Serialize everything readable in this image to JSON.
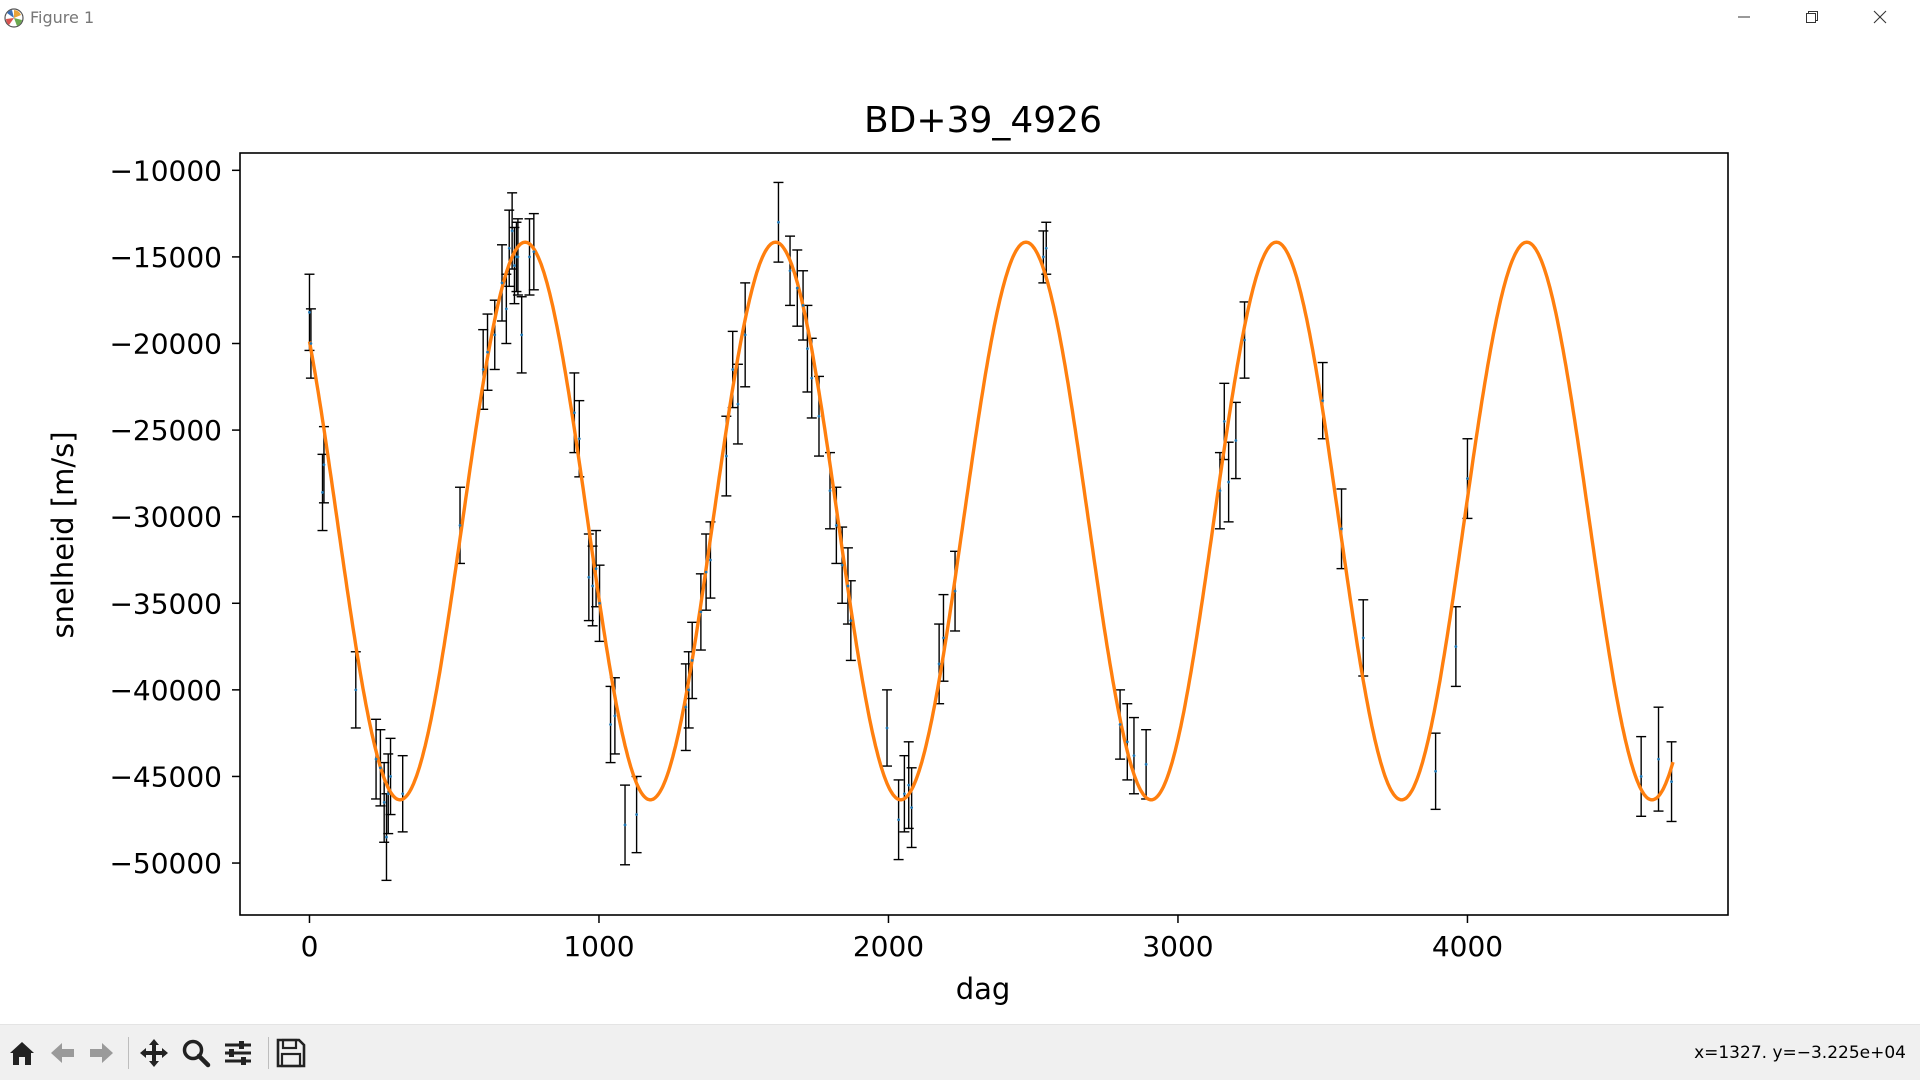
{
  "window": {
    "title": "Figure 1",
    "icons": [
      "matplotlib-icon",
      "minimize-icon",
      "restore-icon",
      "close-icon"
    ]
  },
  "toolbar": {
    "buttons": [
      {
        "name": "home-button",
        "icon": "home-icon",
        "label": "Home"
      },
      {
        "name": "back-button",
        "icon": "arrow-left-icon",
        "label": "Back"
      },
      {
        "name": "forward-button",
        "icon": "arrow-right-icon",
        "label": "Forward"
      },
      {
        "name": "pan-button",
        "icon": "move-icon",
        "label": "Pan"
      },
      {
        "name": "zoom-button",
        "icon": "magnifier-icon",
        "label": "Zoom"
      },
      {
        "name": "configure-subplots-button",
        "icon": "sliders-icon",
        "label": "Subplots"
      },
      {
        "name": "save-button",
        "icon": "floppy-disk-icon",
        "label": "Save"
      }
    ],
    "coords": "x=1327.  y=−3.225e+04"
  },
  "colors": {
    "model": "#ff7f0e",
    "errorbar": "#000000",
    "point": "#1f77b4"
  },
  "chart_data": {
    "type": "scatter",
    "title": "BD+39_4926",
    "xlabel": "dag",
    "ylabel": "snelheid [m/s]",
    "xlim": [
      -240,
      4900
    ],
    "ylim": [
      -53000,
      -9000
    ],
    "xticks": [
      0,
      1000,
      2000,
      3000,
      4000
    ],
    "xtick_labels": [
      "0",
      "1000",
      "2000",
      "3000",
      "4000"
    ],
    "yticks": [
      -10000,
      -15000,
      -20000,
      -25000,
      -30000,
      -35000,
      -40000,
      -45000,
      -50000
    ],
    "ytick_labels": [
      "−10000",
      "−15000",
      "−20000",
      "−25000",
      "−30000",
      "−35000",
      "−40000",
      "−45000",
      "−50000"
    ],
    "grid": false,
    "model_curve": {
      "label": "",
      "function": "sine",
      "offset": -30250,
      "amplitude": 16100,
      "period": 865,
      "peak_at": 745,
      "x_range": [
        0,
        4710
      ]
    },
    "measurements": {
      "x": [
        0,
        5,
        45,
        50,
        160,
        230,
        245,
        258,
        266,
        272,
        280,
        322,
        520,
        600,
        615,
        640,
        665,
        680,
        690,
        700,
        708,
        715,
        720,
        733,
        760,
        775,
        915,
        932,
        965,
        978,
        990,
        1002,
        1040,
        1055,
        1090,
        1130,
        1300,
        1310,
        1322,
        1352,
        1370,
        1385,
        1440,
        1462,
        1480,
        1505,
        1620,
        1660,
        1685,
        1705,
        1720,
        1735,
        1760,
        1798,
        1820,
        1840,
        1860,
        1870,
        1995,
        2035,
        2055,
        2070,
        2080,
        2175,
        2190,
        2230,
        2535,
        2545,
        2800,
        2825,
        2848,
        2890,
        3145,
        3160,
        3175,
        3200,
        3230,
        3500,
        3565,
        3640,
        3890,
        3960,
        4000,
        4600,
        4660,
        4705
      ],
      "y": [
        -18200,
        -20000,
        -28600,
        -27000,
        -40000,
        -44000,
        -44500,
        -46500,
        -48500,
        -46000,
        -45000,
        -46000,
        -30500,
        -21500,
        -20500,
        -19500,
        -16500,
        -18000,
        -14500,
        -13500,
        -15500,
        -15000,
        -15000,
        -19500,
        -15000,
        -14700,
        -24000,
        -25500,
        -33500,
        -34000,
        -33000,
        -35000,
        -42000,
        -41500,
        -47800,
        -47200,
        -41000,
        -40000,
        -38300,
        -35500,
        -33200,
        -32500,
        -26500,
        -21500,
        -23500,
        -19500,
        -13000,
        -15800,
        -16800,
        -17800,
        -20300,
        -22000,
        -24200,
        -28500,
        -30500,
        -32800,
        -34000,
        -36000,
        -42200,
        -47500,
        -46000,
        -45500,
        -46800,
        -38500,
        -37000,
        -34300,
        -15000,
        -14500,
        -42000,
        -43000,
        -43800,
        -44300,
        -28500,
        -24500,
        -28000,
        -25600,
        -19800,
        -23300,
        -30700,
        -37000,
        -44700,
        -37500,
        -27800,
        -45000,
        -44000,
        -45300
      ],
      "yerr": [
        2200,
        2000,
        2200,
        2200,
        2200,
        2300,
        2200,
        2300,
        2500,
        2300,
        2200,
        2200,
        2200,
        2300,
        2200,
        2000,
        2200,
        2000,
        2200,
        2200,
        2200,
        2000,
        2200,
        2200,
        2200,
        2200,
        2300,
        2200,
        2500,
        2300,
        2200,
        2200,
        2200,
        2200,
        2300,
        2200,
        2500,
        2200,
        2200,
        2200,
        2200,
        2200,
        2300,
        2200,
        2300,
        3000,
        2300,
        2000,
        2200,
        2000,
        2500,
        2300,
        2300,
        2200,
        2200,
        2200,
        2200,
        2300,
        2200,
        2300,
        2200,
        2500,
        2300,
        2300,
        2500,
        2300,
        1500,
        1500,
        2000,
        2200,
        2200,
        2000,
        2200,
        2200,
        2300,
        2200,
        2200,
        2200,
        2300,
        2200,
        2200,
        2300,
        2300,
        2300,
        3000,
        2300
      ]
    }
  }
}
